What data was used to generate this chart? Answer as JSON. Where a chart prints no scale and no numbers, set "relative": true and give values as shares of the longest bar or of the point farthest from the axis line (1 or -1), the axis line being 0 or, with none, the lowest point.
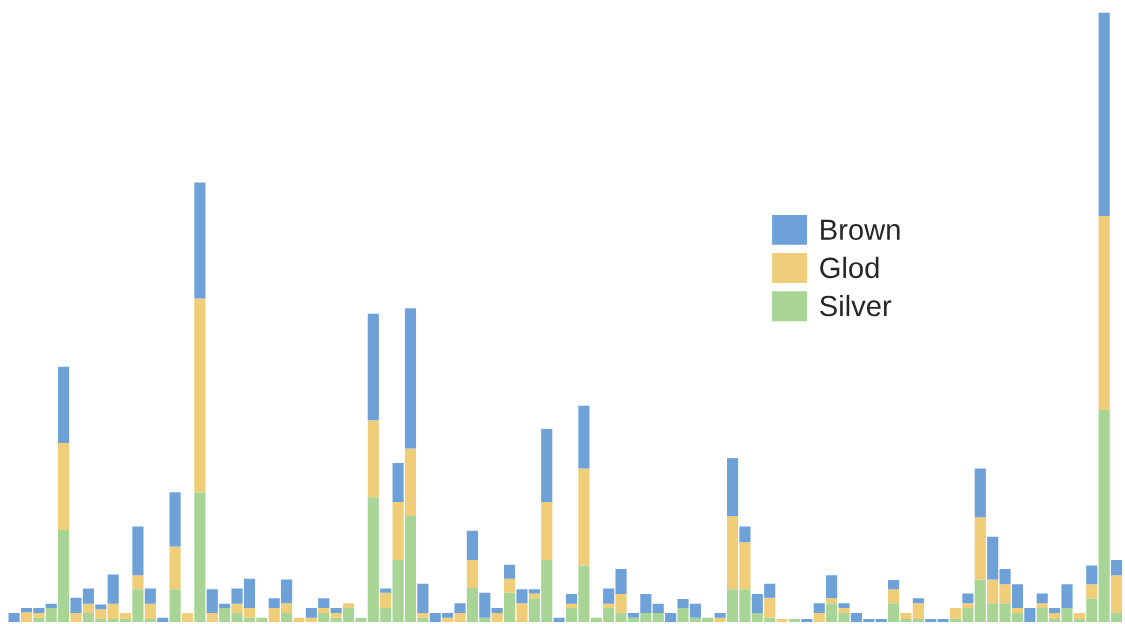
{
  "chart_data": {
    "type": "bar",
    "stacked": true,
    "relative": true,
    "legend": "right",
    "grid": false,
    "categories": [
      null,
      null,
      null,
      null,
      null,
      null,
      null,
      null,
      null,
      null,
      null,
      null,
      null,
      null,
      null,
      null,
      null,
      null,
      null,
      null,
      null,
      null,
      null,
      null,
      null,
      null,
      null,
      null,
      null,
      null,
      null,
      null,
      null,
      null,
      null,
      null,
      null,
      null,
      null,
      null,
      null,
      null,
      null,
      null,
      null,
      null,
      null,
      null,
      null,
      null,
      null,
      null,
      null,
      null,
      null,
      null,
      null,
      null,
      null,
      null,
      null,
      null,
      null,
      null,
      null,
      null,
      null,
      null,
      null,
      null,
      null,
      null,
      null,
      null,
      null,
      null,
      null,
      null,
      null,
      null,
      null,
      null,
      null,
      null,
      null,
      null,
      null,
      null,
      null,
      null
    ],
    "series": [
      {
        "name": "Silver",
        "color": "#a8d596",
        "values": [
          0,
          0,
          0.007,
          0.023,
          0.151,
          0,
          0.015,
          0.005,
          0.005,
          0.005,
          0.054,
          0.005,
          0,
          0.054,
          0,
          0.213,
          0,
          0.023,
          0.015,
          0.007,
          0.007,
          0,
          0.015,
          0,
          0,
          0.015,
          0.007,
          0.023,
          0.007,
          0.205,
          0.023,
          0.102,
          0.174,
          0.007,
          0,
          0,
          0,
          0.056,
          0.007,
          0,
          0.048,
          0,
          0.039,
          0.102,
          0,
          0.023,
          0.093,
          0.007,
          0.023,
          0.015,
          0.007,
          0.015,
          0.015,
          0,
          0.023,
          0.007,
          0.007,
          0,
          0.054,
          0.054,
          0.015,
          0.007,
          0,
          0.005,
          0,
          0,
          0.031,
          0.015,
          0,
          0,
          0,
          0.031,
          0.005,
          0.005,
          0,
          0,
          0.005,
          0.023,
          0.07,
          0.031,
          0.031,
          0.015,
          0,
          0.023,
          0.005,
          0.023,
          0.005,
          0.039,
          0.348,
          0.015
        ]
      },
      {
        "name": "Glod",
        "color": "#f0cd78",
        "values": [
          0,
          0.016,
          0.008,
          0,
          0.143,
          0.015,
          0.015,
          0.016,
          0.025,
          0.01,
          0.023,
          0.025,
          0,
          0.07,
          0.015,
          0.318,
          0.015,
          0,
          0.015,
          0.016,
          0,
          0.023,
          0.016,
          0.007,
          0.007,
          0.008,
          0.008,
          0.008,
          0,
          0.126,
          0.025,
          0.095,
          0.111,
          0.008,
          0,
          0.007,
          0.015,
          0.046,
          0,
          0.015,
          0.023,
          0.031,
          0.008,
          0.095,
          0,
          0.007,
          0.159,
          0,
          0.007,
          0.031,
          0,
          0,
          0,
          0,
          0,
          0,
          0,
          0.007,
          0.12,
          0.077,
          0,
          0.033,
          0.005,
          0,
          0,
          0.015,
          0.008,
          0.008,
          0,
          0,
          0,
          0.023,
          0.01,
          0.026,
          0,
          0,
          0.018,
          0.008,
          0.102,
          0.039,
          0.031,
          0.008,
          0,
          0.008,
          0.01,
          0,
          0.01,
          0.023,
          0.318,
          0.062
        ]
      },
      {
        "name": "Brown",
        "color": "#6fa1d9",
        "values": [
          0.015,
          0.007,
          0.008,
          0.007,
          0.125,
          0.025,
          0.025,
          0.008,
          0.048,
          0,
          0.08,
          0.025,
          0.007,
          0.089,
          0,
          0.19,
          0.039,
          0.007,
          0.025,
          0.048,
          0,
          0.016,
          0.039,
          0,
          0.016,
          0.016,
          0.008,
          0,
          0,
          0.175,
          0.007,
          0.064,
          0.23,
          0.048,
          0.015,
          0.008,
          0.016,
          0.048,
          0.041,
          0.008,
          0.023,
          0.023,
          0.007,
          0.12,
          0.007,
          0.016,
          0.103,
          0,
          0.025,
          0.041,
          0.008,
          0.031,
          0.015,
          0.015,
          0.015,
          0.023,
          0,
          0.008,
          0.095,
          0.026,
          0.031,
          0.023,
          0,
          0,
          0.005,
          0.016,
          0.038,
          0.008,
          0.015,
          0.005,
          0.005,
          0.015,
          0,
          0.008,
          0.005,
          0.005,
          0,
          0.016,
          0.08,
          0.07,
          0.025,
          0.039,
          0.023,
          0.016,
          0.008,
          0.039,
          0,
          0.031,
          0.334,
          0.025
        ]
      }
    ]
  }
}
